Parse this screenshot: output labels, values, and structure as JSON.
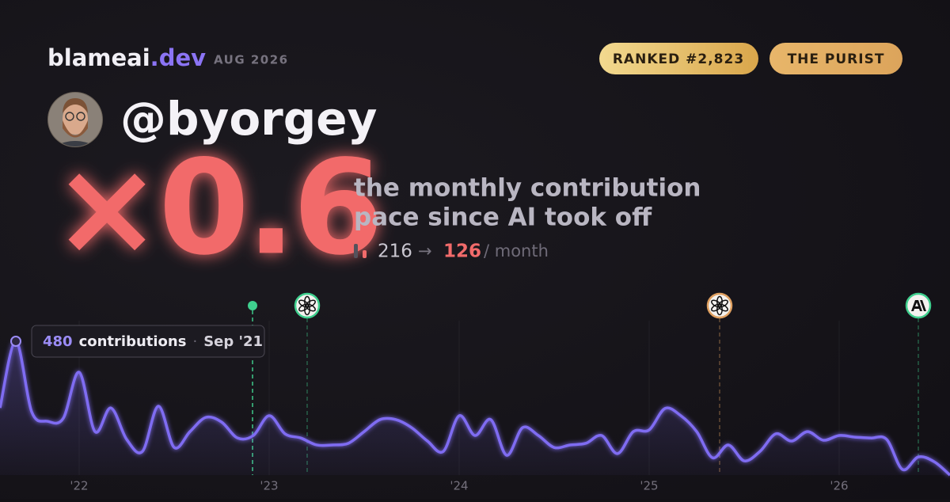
{
  "header": {
    "brand": "blameai",
    "brand_tld": ".dev",
    "date": "AUG 2026",
    "badges": [
      "RANKED #2,823",
      "THE PURIST"
    ]
  },
  "profile": {
    "handle": "@byorgey"
  },
  "headline": {
    "multiplier": "×0.6",
    "description": [
      "the monthly contribution",
      "pace since AI took off"
    ],
    "before": 216,
    "arrow": "→",
    "after": 126,
    "unit": "/ month"
  },
  "chart_data": {
    "type": "line",
    "x": [
      "2021-08",
      "2021-09",
      "2021-10",
      "2021-11",
      "2021-12",
      "2022-01",
      "2022-02",
      "2022-03",
      "2022-04",
      "2022-05",
      "2022-06",
      "2022-07",
      "2022-08",
      "2022-09",
      "2022-10",
      "2022-11",
      "2022-12",
      "2023-01",
      "2023-02",
      "2023-03",
      "2023-04",
      "2023-05",
      "2023-06",
      "2023-07",
      "2023-08",
      "2023-09",
      "2023-10",
      "2023-11",
      "2023-12",
      "2024-01",
      "2024-02",
      "2024-03",
      "2024-04",
      "2024-05",
      "2024-06",
      "2024-07",
      "2024-08",
      "2024-09",
      "2024-10",
      "2024-11",
      "2024-12",
      "2025-01",
      "2025-02",
      "2025-03",
      "2025-04",
      "2025-05",
      "2025-06",
      "2025-07",
      "2025-08",
      "2025-09",
      "2025-10",
      "2025-11",
      "2025-12",
      "2026-01",
      "2026-02",
      "2026-03",
      "2026-04",
      "2026-05",
      "2026-06",
      "2026-07",
      "2026-08"
    ],
    "values": [
      241,
      480,
      227,
      193,
      204,
      369,
      156,
      241,
      128,
      85,
      247,
      99,
      156,
      207,
      190,
      133,
      142,
      213,
      148,
      133,
      108,
      108,
      114,
      156,
      199,
      199,
      170,
      122,
      85,
      213,
      142,
      199,
      71,
      170,
      142,
      99,
      108,
      114,
      142,
      77,
      156,
      162,
      239,
      213,
      156,
      62,
      108,
      51,
      85,
      148,
      122,
      156,
      125,
      142,
      136,
      133,
      128,
      20,
      65,
      48,
      0
    ],
    "color": "#7f6cf2",
    "xlim": [
      "2021-08",
      "2026-08"
    ],
    "ylim": [
      0,
      480
    ],
    "xticks": [
      {
        "value": "2022-01",
        "label": "'22"
      },
      {
        "value": "2023-01",
        "label": "'23"
      },
      {
        "value": "2024-01",
        "label": "'24"
      },
      {
        "value": "2025-01",
        "label": "'25"
      },
      {
        "value": "2026-01",
        "label": "'26"
      }
    ],
    "markers": [
      "2022-12",
      "2023-03",
      "2025-05",
      "2026-06"
    ],
    "tooltip": {
      "label": "contributions",
      "separator": "·",
      "date": "Sep '21"
    }
  }
}
